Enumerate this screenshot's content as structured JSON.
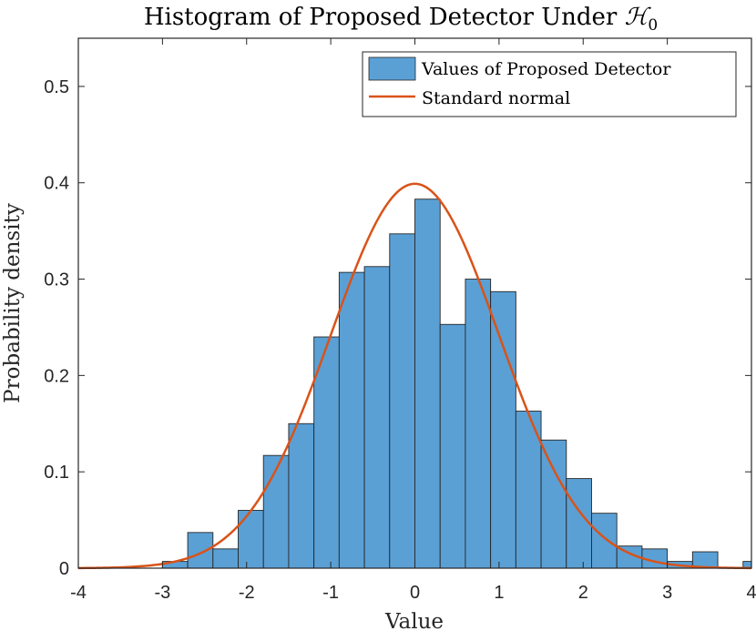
{
  "chart_data": {
    "type": "bar",
    "title": "Histogram of Proposed Detector Under ",
    "title_symbol": "ℋ",
    "title_subscript": "0",
    "xlabel": "Value",
    "ylabel": "Probability density",
    "xlim": [
      -4,
      4
    ],
    "ylim": [
      0,
      0.55
    ],
    "xticks": [
      "-4",
      "-3",
      "-2",
      "-1",
      "0",
      "1",
      "2",
      "3",
      "4"
    ],
    "xtick_values": [
      -4,
      -3,
      -2,
      -1,
      0,
      1,
      2,
      3,
      4
    ],
    "yticks": [
      "0",
      "0.1",
      "0.2",
      "0.3",
      "0.4",
      "0.5"
    ],
    "ytick_values": [
      0,
      0.1,
      0.2,
      0.3,
      0.4,
      0.5
    ],
    "grid": false,
    "legend_position": "top-right",
    "bin_edges": [
      -3.0,
      -2.7,
      -2.4,
      -2.1,
      -1.8,
      -1.5,
      -1.2,
      -0.9,
      -0.6,
      -0.3,
      0.0,
      0.3,
      0.6,
      0.9,
      1.2,
      1.5,
      1.8,
      2.1,
      2.4,
      2.7,
      3.0,
      3.3,
      3.6,
      3.9,
      4.0
    ],
    "values": [
      0.007,
      0.037,
      0.02,
      0.06,
      0.117,
      0.15,
      0.24,
      0.307,
      0.313,
      0.347,
      0.383,
      0.253,
      0.3,
      0.287,
      0.163,
      0.133,
      0.093,
      0.057,
      0.023,
      0.02,
      0.007,
      0.017,
      0.0,
      0.007
    ],
    "series": [
      {
        "name": "Values of Proposed Detector",
        "kind": "histogram",
        "color": "#5aa0d5"
      },
      {
        "name": "Standard normal",
        "kind": "line",
        "color": "#d95319",
        "function": "standard normal pdf"
      }
    ]
  }
}
